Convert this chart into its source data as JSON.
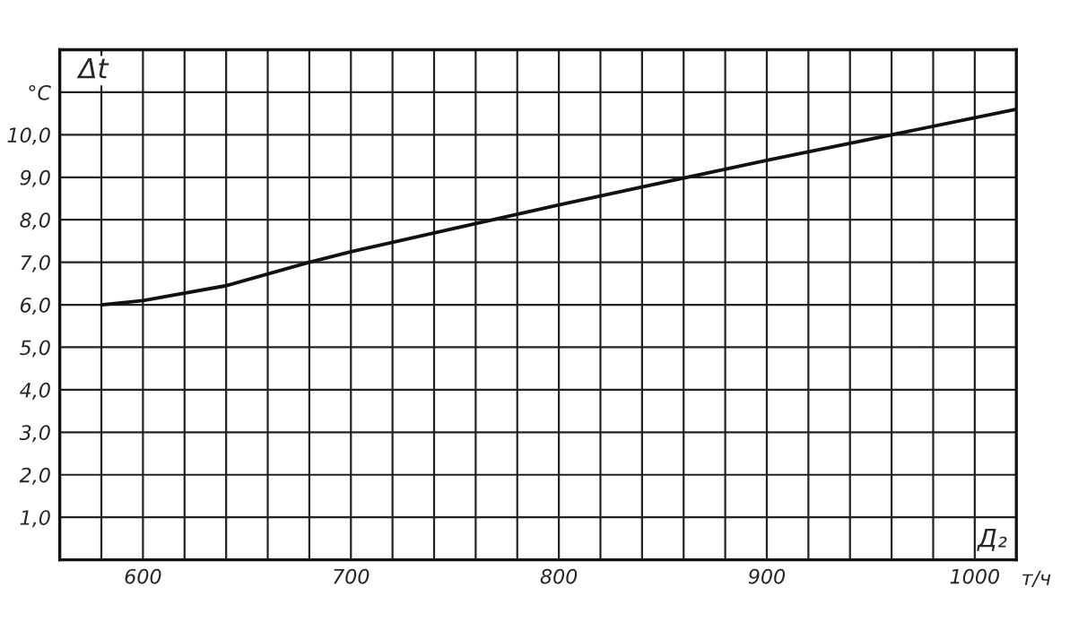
{
  "chart_data": {
    "type": "line",
    "xlabel": "Д₂",
    "ylabel": "Δt",
    "annotations": [
      "т/ч"
    ],
    "x": [
      580,
      600,
      640,
      680,
      700,
      800,
      900,
      1000,
      1020
    ],
    "series": [
      {
        "color": "#111111",
        "values": [
          6.0,
          6.1,
          6.45,
          7.0,
          7.25,
          8.35,
          9.4,
          10.4,
          10.6
        ]
      }
    ],
    "xlim": [
      560,
      1020
    ],
    "ylim": [
      0,
      12
    ],
    "xticks": [
      {
        "value": 580,
        "label": null
      },
      600,
      {
        "value": 620,
        "label": null
      },
      {
        "value": 640,
        "label": null
      },
      {
        "value": 660,
        "label": null
      },
      {
        "value": 680,
        "label": null
      },
      700,
      {
        "value": 720,
        "label": null
      },
      {
        "value": 740,
        "label": null
      },
      {
        "value": 760,
        "label": null
      },
      {
        "value": 780,
        "label": null
      },
      800,
      {
        "value": 820,
        "label": null
      },
      {
        "value": 840,
        "label": null
      },
      {
        "value": 860,
        "label": null
      },
      {
        "value": 880,
        "label": null
      },
      900,
      {
        "value": 920,
        "label": null
      },
      {
        "value": 940,
        "label": null
      },
      {
        "value": 960,
        "label": null
      },
      {
        "value": 980,
        "label": null
      },
      1000
    ],
    "yticks": [
      {
        "value": 1,
        "label": "1,0"
      },
      {
        "value": 2,
        "label": "2,0"
      },
      {
        "value": 3,
        "label": "3,0"
      },
      {
        "value": 4,
        "label": "4,0"
      },
      {
        "value": 5,
        "label": "5,0"
      },
      {
        "value": 6,
        "label": "6,0"
      },
      {
        "value": 7,
        "label": "7,0"
      },
      {
        "value": 8,
        "label": "8,0"
      },
      {
        "value": 9,
        "label": "9,0"
      },
      {
        "value": 10,
        "label": "10,0"
      },
      {
        "value": 11,
        "label": "°C"
      }
    ],
    "grid": true,
    "marker": "none",
    "line_style": "solid"
  }
}
